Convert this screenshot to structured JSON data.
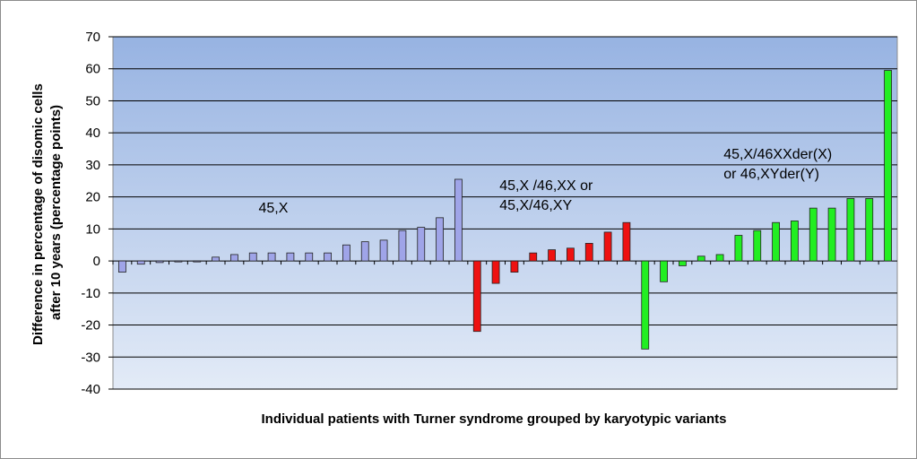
{
  "chart_data": {
    "type": "bar",
    "title": "",
    "xlabel": "Individual patients with Turner syndrome grouped by karyotypic variants",
    "ylabel": [
      "Difference in percentage of disomic cells",
      "after 10 years (percentage points)"
    ],
    "ylim": [
      -40,
      70
    ],
    "yticks": [
      70,
      60,
      50,
      40,
      30,
      20,
      10,
      0,
      -10,
      -20,
      -30,
      -40
    ],
    "grid": true,
    "series": [
      {
        "group": "45,X",
        "color": "#9fa4e8",
        "values": [
          -3.5,
          -1,
          -0.5,
          -0.3,
          -0.3,
          1.2,
          2,
          2.5,
          2.5,
          2.5,
          2.5,
          2.5,
          5,
          6,
          6.5,
          9.5,
          10.5,
          13.5,
          25.5
        ]
      },
      {
        "group": "45,X /46,XX or 45,X/46,XY",
        "color": "#ee1111",
        "values": [
          -22,
          -7,
          -3.5,
          2.5,
          3.5,
          4,
          5.5,
          9,
          12
        ]
      },
      {
        "group": "45,X/46XXder(X) or 46,XYder(Y)",
        "color": "#22ee22",
        "values": [
          -27.5,
          -6.5,
          -1.5,
          1.5,
          2,
          8,
          9.5,
          12,
          12.5,
          16.5,
          16.5,
          19.5,
          19.5,
          59.5
        ]
      }
    ],
    "annotations": [
      {
        "lines": [
          "45,X"
        ]
      },
      {
        "lines": [
          "45,X /46,XX or",
          "45,X/46,XY"
        ]
      },
      {
        "lines": [
          "45,X/46XXder(X)",
          "or 46,XYder(Y)"
        ]
      }
    ]
  }
}
